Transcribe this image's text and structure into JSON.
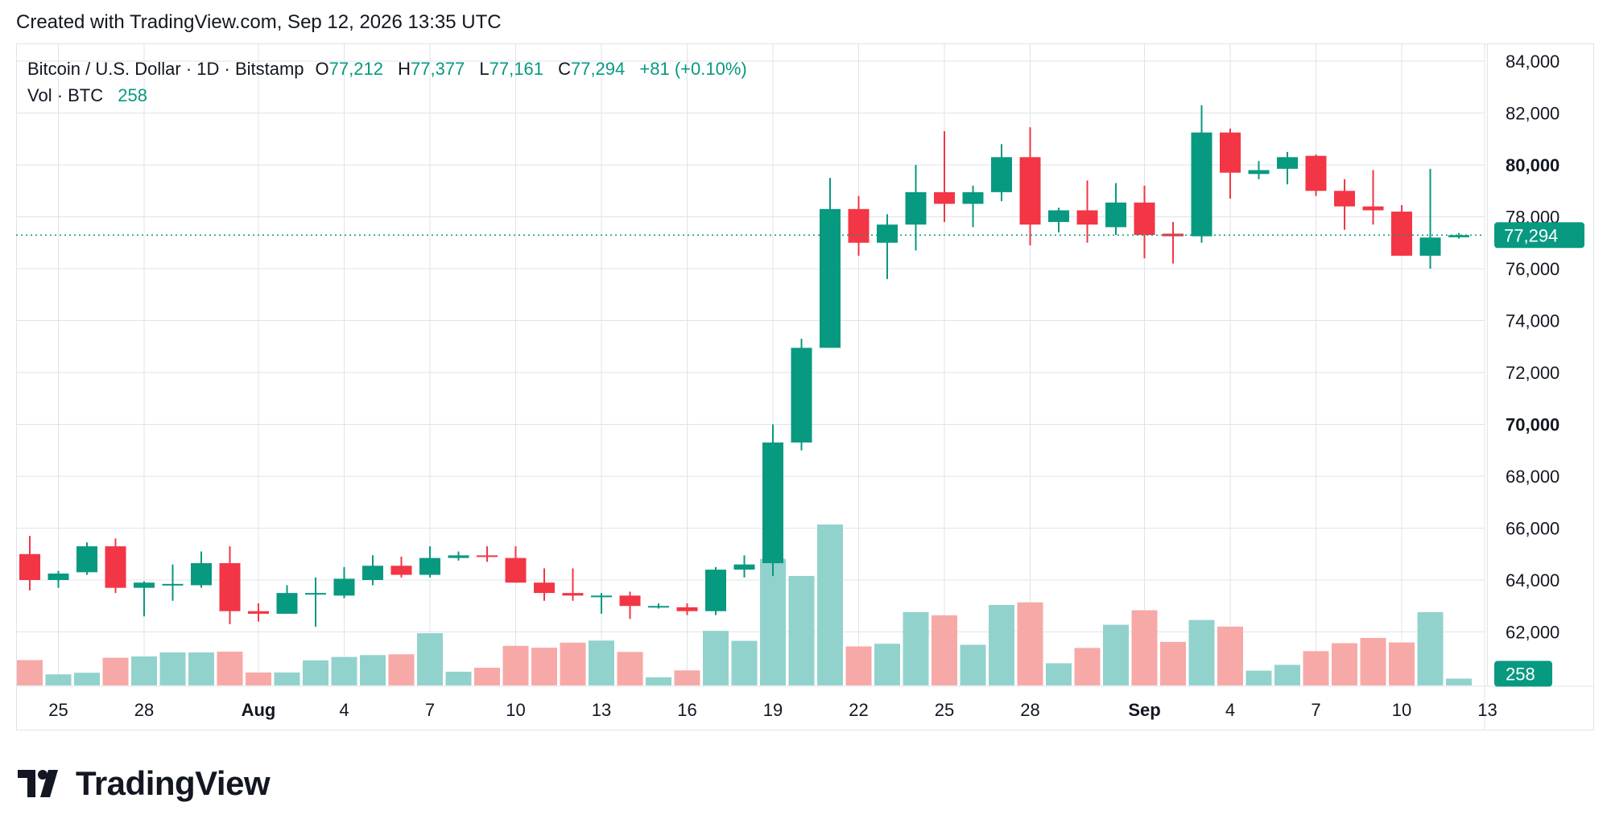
{
  "header": {
    "created_note": "Created with TradingView.com, Sep 12, 2026 13:35 UTC"
  },
  "legend": {
    "symbol": "Bitcoin / U.S. Dollar · 1D · Bitstamp",
    "open_label": "O",
    "open_value": "77,212",
    "high_label": "H",
    "high_value": "77,377",
    "low_label": "L",
    "low_value": "77,161",
    "close_label": "C",
    "close_value": "77,294",
    "change": "+81 (+0.10%)",
    "vol_label": "Vol · BTC",
    "vol_value": "258"
  },
  "badges": {
    "last_price": "77,294",
    "last_volume": "258"
  },
  "footer": {
    "brand": "TradingView"
  },
  "colors": {
    "up": "#089981",
    "down": "#f23645",
    "vol_up": "#92d2cc",
    "vol_down": "#f7a9a7",
    "grid": "#e0e3eb",
    "text": "#131722"
  },
  "chart_data": {
    "type": "candlestick",
    "y_ticks": [
      "62,000",
      "64,000",
      "66,000",
      "68,000",
      "70,000",
      "72,000",
      "74,000",
      "76,000",
      "78,000",
      "80,000",
      "82,000",
      "84,000"
    ],
    "y_tick_values": [
      62000,
      64000,
      66000,
      68000,
      70000,
      72000,
      74000,
      76000,
      78000,
      80000,
      82000,
      84000
    ],
    "bold_ticks": [
      70000,
      80000
    ],
    "ylim": [
      60000,
      84000
    ],
    "x_tick_labels": [
      {
        "i": 1,
        "text": "25"
      },
      {
        "i": 4,
        "text": "28"
      },
      {
        "i": 8,
        "text": "Aug",
        "bold": true
      },
      {
        "i": 11,
        "text": "4"
      },
      {
        "i": 14,
        "text": "7"
      },
      {
        "i": 17,
        "text": "10"
      },
      {
        "i": 20,
        "text": "13"
      },
      {
        "i": 23,
        "text": "16"
      },
      {
        "i": 26,
        "text": "19"
      },
      {
        "i": 29,
        "text": "22"
      },
      {
        "i": 32,
        "text": "25"
      },
      {
        "i": 35,
        "text": "28"
      },
      {
        "i": 39,
        "text": "Sep",
        "bold": true
      },
      {
        "i": 42,
        "text": "4"
      },
      {
        "i": 45,
        "text": "7"
      },
      {
        "i": 48,
        "text": "10"
      },
      {
        "i": 51,
        "text": "13"
      }
    ],
    "last_price": 77294,
    "candles": [
      {
        "o": 65000,
        "h": 65700,
        "l": 63600,
        "c": 64000,
        "v": 960
      },
      {
        "o": 64000,
        "h": 64350,
        "l": 63700,
        "c": 64250,
        "v": 420
      },
      {
        "o": 64300,
        "h": 65450,
        "l": 64200,
        "c": 65300,
        "v": 480
      },
      {
        "o": 65300,
        "h": 65600,
        "l": 63500,
        "c": 63700,
        "v": 1050
      },
      {
        "o": 63700,
        "h": 63950,
        "l": 62600,
        "c": 63900,
        "v": 1100
      },
      {
        "o": 63800,
        "h": 64600,
        "l": 63200,
        "c": 63850,
        "v": 1250
      },
      {
        "o": 63800,
        "h": 65100,
        "l": 63700,
        "c": 64650,
        "v": 1250
      },
      {
        "o": 64650,
        "h": 65300,
        "l": 62300,
        "c": 62800,
        "v": 1280
      },
      {
        "o": 62800,
        "h": 63100,
        "l": 62400,
        "c": 62700,
        "v": 490
      },
      {
        "o": 62700,
        "h": 63800,
        "l": 62700,
        "c": 63500,
        "v": 490
      },
      {
        "o": 63500,
        "h": 64100,
        "l": 62200,
        "c": 63500,
        "v": 950
      },
      {
        "o": 63400,
        "h": 64500,
        "l": 63300,
        "c": 64050,
        "v": 1080
      },
      {
        "o": 64000,
        "h": 64950,
        "l": 63800,
        "c": 64550,
        "v": 1150
      },
      {
        "o": 64550,
        "h": 64900,
        "l": 64100,
        "c": 64200,
        "v": 1180
      },
      {
        "o": 64200,
        "h": 65300,
        "l": 64100,
        "c": 64850,
        "v": 1980
      },
      {
        "o": 64850,
        "h": 65100,
        "l": 64750,
        "c": 64950,
        "v": 520
      },
      {
        "o": 64950,
        "h": 65300,
        "l": 64700,
        "c": 64900,
        "v": 670
      },
      {
        "o": 64850,
        "h": 65300,
        "l": 63900,
        "c": 63900,
        "v": 1500
      },
      {
        "o": 63900,
        "h": 64450,
        "l": 63200,
        "c": 63500,
        "v": 1430
      },
      {
        "o": 63500,
        "h": 64450,
        "l": 63200,
        "c": 63400,
        "v": 1620
      },
      {
        "o": 63400,
        "h": 63500,
        "l": 62700,
        "c": 63400,
        "v": 1700
      },
      {
        "o": 63400,
        "h": 63550,
        "l": 62500,
        "c": 63000,
        "v": 1270
      },
      {
        "o": 62950,
        "h": 63100,
        "l": 62900,
        "c": 63000,
        "v": 310
      },
      {
        "o": 62950,
        "h": 63100,
        "l": 62650,
        "c": 62800,
        "v": 570
      },
      {
        "o": 62800,
        "h": 64500,
        "l": 62650,
        "c": 64400,
        "v": 2070
      },
      {
        "o": 64400,
        "h": 64950,
        "l": 64100,
        "c": 64600,
        "v": 1690
      },
      {
        "o": 64650,
        "h": 70000,
        "l": 64150,
        "c": 69300,
        "v": 4800
      },
      {
        "o": 69300,
        "h": 73300,
        "l": 69000,
        "c": 72950,
        "v": 4150
      },
      {
        "o": 72950,
        "h": 79500,
        "l": 72950,
        "c": 78300,
        "v": 6100
      },
      {
        "o": 78300,
        "h": 78800,
        "l": 76500,
        "c": 77000,
        "v": 1480
      },
      {
        "o": 77000,
        "h": 78100,
        "l": 75600,
        "c": 77700,
        "v": 1580
      },
      {
        "o": 77700,
        "h": 80000,
        "l": 76700,
        "c": 78950,
        "v": 2780
      },
      {
        "o": 78950,
        "h": 81300,
        "l": 77800,
        "c": 78500,
        "v": 2660
      },
      {
        "o": 78500,
        "h": 79200,
        "l": 77600,
        "c": 78950,
        "v": 1540
      },
      {
        "o": 78950,
        "h": 80800,
        "l": 78600,
        "c": 80300,
        "v": 3050
      },
      {
        "o": 80300,
        "h": 81450,
        "l": 76900,
        "c": 77700,
        "v": 3150
      },
      {
        "o": 77800,
        "h": 78350,
        "l": 77400,
        "c": 78250,
        "v": 840
      },
      {
        "o": 78250,
        "h": 79400,
        "l": 77000,
        "c": 77700,
        "v": 1420
      },
      {
        "o": 77600,
        "h": 79300,
        "l": 77300,
        "c": 78550,
        "v": 2300
      },
      {
        "o": 78550,
        "h": 79200,
        "l": 76400,
        "c": 77300,
        "v": 2850
      },
      {
        "o": 77350,
        "h": 77800,
        "l": 76200,
        "c": 77250,
        "v": 1650
      },
      {
        "o": 77250,
        "h": 82300,
        "l": 77000,
        "c": 81250,
        "v": 2480
      },
      {
        "o": 81250,
        "h": 81400,
        "l": 78700,
        "c": 79700,
        "v": 2230
      },
      {
        "o": 79650,
        "h": 80150,
        "l": 79450,
        "c": 79800,
        "v": 560
      },
      {
        "o": 79850,
        "h": 80500,
        "l": 79250,
        "c": 80300,
        "v": 780
      },
      {
        "o": 80350,
        "h": 80400,
        "l": 78800,
        "c": 79000,
        "v": 1300
      },
      {
        "o": 79000,
        "h": 79450,
        "l": 77500,
        "c": 78400,
        "v": 1600
      },
      {
        "o": 78400,
        "h": 79800,
        "l": 77700,
        "c": 78250,
        "v": 1800
      },
      {
        "o": 78200,
        "h": 78450,
        "l": 76500,
        "c": 76500,
        "v": 1630
      },
      {
        "o": 76500,
        "h": 79850,
        "l": 76000,
        "c": 77200,
        "v": 2780
      },
      {
        "o": 77212,
        "h": 77377,
        "l": 77161,
        "c": 77294,
        "v": 258
      }
    ]
  }
}
